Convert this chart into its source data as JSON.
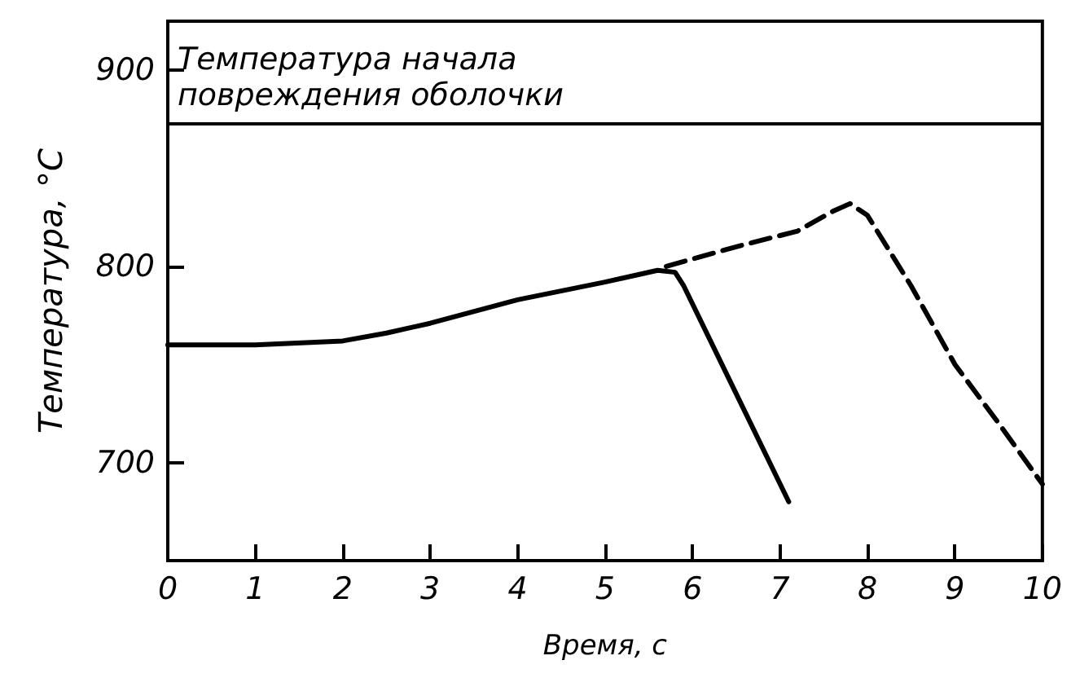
{
  "chart_data": {
    "type": "line",
    "xlabel": "Время, с",
    "ylabel": "Температура, °С",
    "xlim": [
      0,
      10
    ],
    "xticks": [
      0,
      1,
      2,
      3,
      4,
      5,
      6,
      7,
      8,
      9,
      10
    ],
    "ylim": [
      650,
      925
    ],
    "yticks": [
      700,
      800,
      900
    ],
    "grid": false,
    "marker": "none",
    "ref_lines": [
      {
        "axis": "y",
        "value": 873,
        "label": "Температура начала повреждения оболочки",
        "color": "#000000"
      }
    ],
    "series": [
      {
        "color": "#000000",
        "line_style": "solid",
        "x": [
          0,
          1,
          2,
          2.5,
          3,
          4,
          5,
          5.6,
          5.8,
          5.9,
          6.5,
          7.1
        ],
        "values": [
          760,
          760,
          762,
          766,
          771,
          783,
          792,
          798,
          797,
          790,
          735,
          680
        ]
      },
      {
        "color": "#000000",
        "line_style": "dashed",
        "x": [
          5.7,
          6.5,
          7.2,
          7.6,
          7.8,
          8.0,
          8.5,
          9.0,
          9.5,
          10
        ],
        "values": [
          800,
          810,
          818,
          828,
          832,
          826,
          790,
          750,
          720,
          689
        ]
      }
    ]
  }
}
